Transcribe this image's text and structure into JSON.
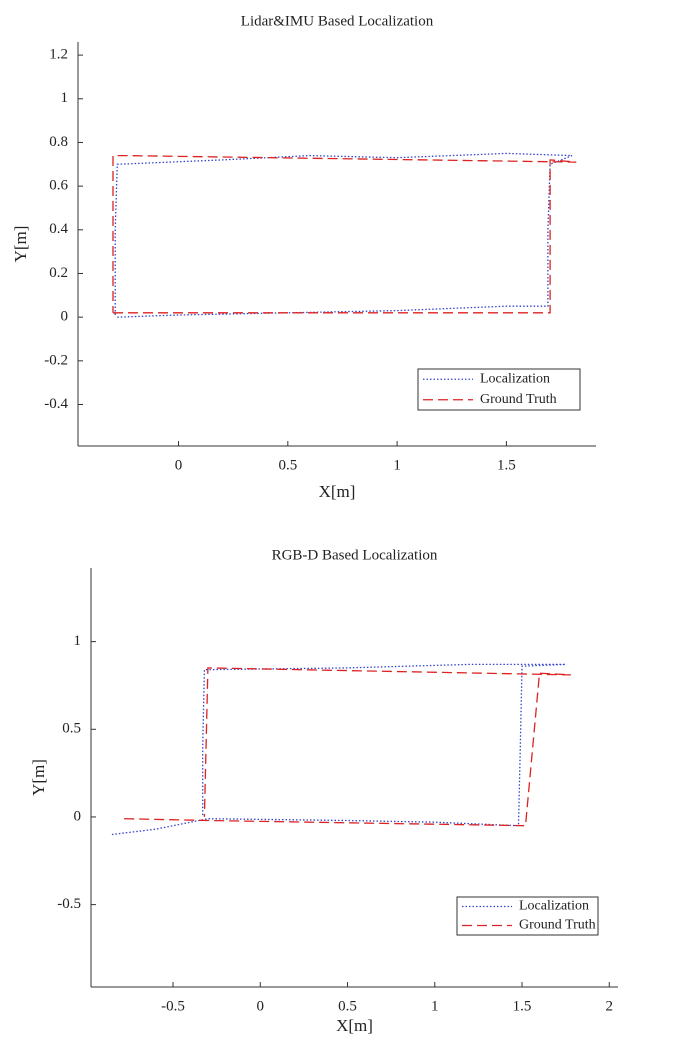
{
  "chart_data": [
    {
      "type": "line",
      "title": "Lidar&IMU Based Localization",
      "x_label": "X[m]",
      "y_label": "Y[m]",
      "xlim": [
        -0.46,
        1.91
      ],
      "ylim": [
        -0.59,
        1.26
      ],
      "xticks": [
        0,
        0.5,
        1,
        1.5
      ],
      "yticks": [
        -0.4,
        -0.2,
        0,
        0.2,
        0.4,
        0.6,
        0.8,
        1,
        1.2
      ],
      "legend": "lower right",
      "series": [
        {
          "name": "Localization",
          "color": "#3344cc",
          "style": "dotted",
          "x": [
            -0.28,
            0,
            0.5,
            1,
            1.5,
            1.69,
            1.69,
            1.7,
            1.8,
            1.5,
            1,
            0.6,
            0.2,
            -0.28,
            -0.29,
            -0.29
          ],
          "values": [
            0.0,
            0.01,
            0.02,
            0.03,
            0.05,
            0.05,
            0.4,
            0.7,
            0.74,
            0.75,
            0.73,
            0.74,
            0.72,
            0.7,
            0.4,
            0.01
          ]
        },
        {
          "name": "Ground Truth",
          "color": "#dd2222",
          "style": "dashed",
          "x": [
            -0.3,
            1.7,
            1.7,
            1.82,
            -0.24,
            -0.3,
            -0.3
          ],
          "values": [
            0.02,
            0.02,
            0.72,
            0.71,
            0.74,
            0.74,
            0.02
          ]
        }
      ]
    },
    {
      "type": "line",
      "title": "RGB-D Based Localization",
      "x_label": "X[m]",
      "y_label": "Y[m]",
      "xlim": [
        -0.97,
        2.05
      ],
      "ylim": [
        -0.97,
        1.42
      ],
      "xticks": [
        -0.5,
        0,
        0.5,
        1,
        1.5,
        2
      ],
      "yticks": [
        -0.5,
        0,
        0.5,
        1
      ],
      "legend": "lower right",
      "series": [
        {
          "name": "Localization",
          "color": "#3344cc",
          "style": "dotted",
          "x": [
            -0.85,
            -0.6,
            -0.3,
            0.5,
            1.0,
            1.48,
            1.49,
            1.5,
            1.75,
            1.2,
            0.5,
            -0.32,
            -0.33,
            -0.33
          ],
          "values": [
            -0.1,
            -0.07,
            -0.01,
            -0.02,
            -0.03,
            -0.05,
            0.4,
            0.86,
            0.87,
            0.87,
            0.85,
            0.84,
            0.4,
            0.0
          ]
        },
        {
          "name": "Ground Truth",
          "color": "#dd2222",
          "style": "dashed",
          "x": [
            -0.78,
            -0.3,
            1.52,
            1.6,
            1.78,
            -0.3,
            -0.32
          ],
          "values": [
            -0.01,
            -0.02,
            -0.05,
            0.82,
            0.81,
            0.85,
            0.0
          ]
        }
      ]
    }
  ]
}
